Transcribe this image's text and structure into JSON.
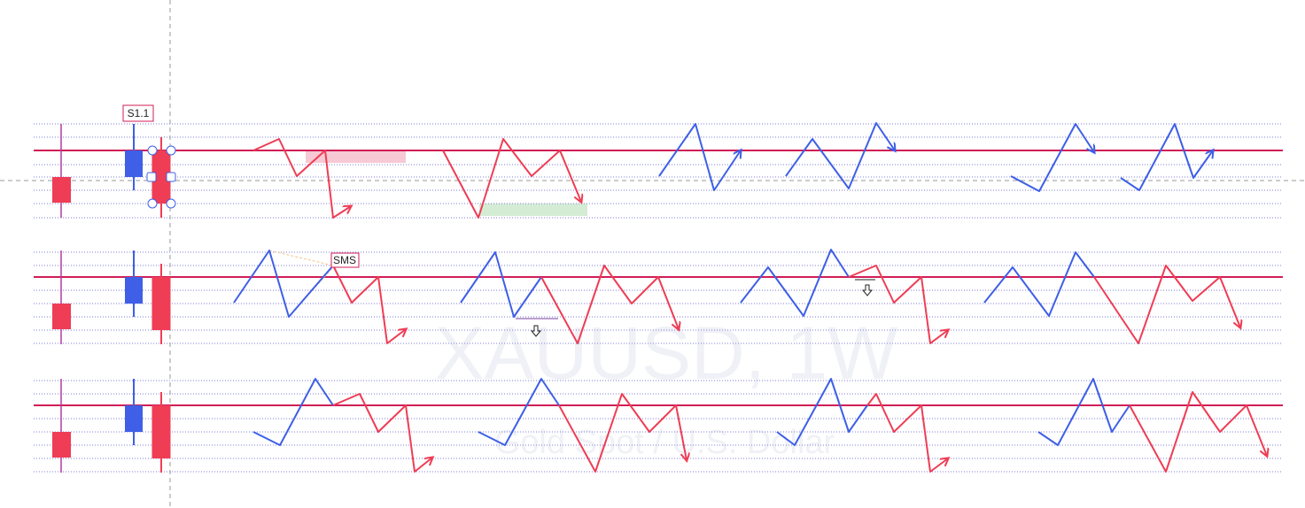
{
  "watermark": {
    "symbol": "XAUUSD, 1W",
    "description": "Gold Spot / U.S. Dollar"
  },
  "labels": {
    "s11": "S1.1",
    "sms": "SMS"
  },
  "icons": {
    "down_marker": "hollow-down-arrow-icon",
    "handle": "drawing-handle-icon"
  },
  "colors": {
    "bullish": "#3e5fe6",
    "bearish": "#ee3d55",
    "level": "#d11d55",
    "dotted": "#7d7fd9",
    "supply_zone": "#f6c9d4",
    "demand_zone": "#d4ecd4",
    "cursor": "#9a9a9a",
    "fan": "#f2c48a",
    "watermark": "#f0f1f6"
  }
}
